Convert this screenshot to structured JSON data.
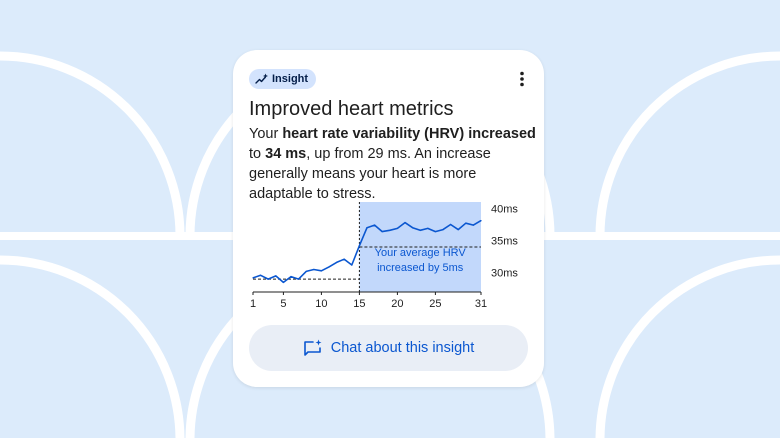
{
  "badge": {
    "label": "Insight",
    "icon": "trend-sparkle-icon"
  },
  "menu": {
    "icon": "more-vert-icon"
  },
  "title": "Improved heart metrics",
  "body": {
    "t1": "Your ",
    "b1": "heart rate variability (HRV) increased",
    "t2": " to ",
    "b2": "34 ms",
    "t3": ", up from 29 ms. An increase generally means your heart is more adaptable to stress."
  },
  "chart_data": {
    "type": "line",
    "x": [
      1,
      2,
      3,
      4,
      5,
      6,
      7,
      8,
      9,
      10,
      11,
      12,
      13,
      14,
      15,
      16,
      17,
      18,
      19,
      20,
      21,
      22,
      23,
      24,
      25,
      26,
      27,
      28,
      29,
      30,
      31
    ],
    "series": [
      {
        "values": [
          29.2,
          29.6,
          29.0,
          29.5,
          28.5,
          29.4,
          29.0,
          30.2,
          30.5,
          30.3,
          30.9,
          31.6,
          32.1,
          31.2,
          34.2,
          37.0,
          37.4,
          36.4,
          36.6,
          36.9,
          37.8,
          37.0,
          36.6,
          36.9,
          36.4,
          36.7,
          37.5,
          36.7,
          37.7,
          37.4,
          38.1
        ]
      }
    ],
    "xticks": [
      "1",
      "5",
      "10",
      "15",
      "20",
      "25",
      "31"
    ],
    "yticks": [
      "30ms",
      "35ms",
      "40ms"
    ],
    "ylim": [
      27,
      41
    ],
    "baseline_before": 29,
    "baseline_after": 34,
    "highlight_start": 15,
    "annotation_line1": "Your average HRV",
    "annotation_line2": "increased by 5ms",
    "colors": {
      "line": "#0b57d0",
      "highlight": "#c2d8fb",
      "annotation": "#0b57d0"
    }
  },
  "chat_button": {
    "label": "Chat about this insight",
    "icon": "chat-spark-icon"
  }
}
